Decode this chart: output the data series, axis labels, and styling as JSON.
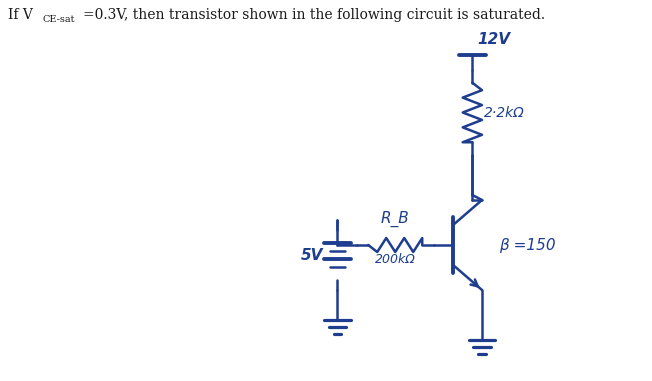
{
  "bg_color": "#ffffff",
  "ink_color": "#1e3d8f",
  "text_color": "#1a1a1a",
  "fig_width": 6.52,
  "fig_height": 3.81,
  "dpi": 100,
  "vcc_label": "12V",
  "rc_label": "2·2kΩ",
  "rb_label": "R_B",
  "rb_val_label": "200kΩ",
  "beta_label": "β =150",
  "v_label": "5V"
}
